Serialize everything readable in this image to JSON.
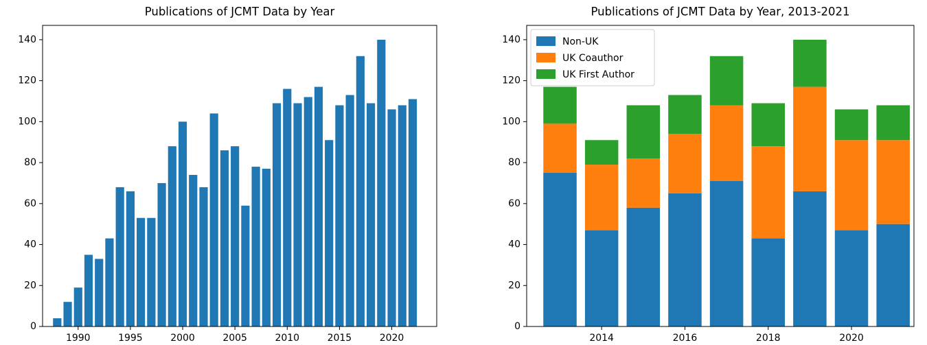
{
  "chart_data": [
    {
      "type": "bar",
      "title": "Publications of JCMT Data by Year",
      "color": "#1f77b4",
      "x": [
        1988,
        1989,
        1990,
        1991,
        1992,
        1993,
        1994,
        1995,
        1996,
        1997,
        1998,
        1999,
        2000,
        2001,
        2002,
        2003,
        2004,
        2005,
        2006,
        2007,
        2008,
        2009,
        2010,
        2011,
        2012,
        2013,
        2014,
        2015,
        2016,
        2017,
        2018,
        2019,
        2020,
        2021,
        2022
      ],
      "values": [
        4,
        12,
        19,
        35,
        33,
        43,
        68,
        66,
        53,
        53,
        70,
        88,
        100,
        74,
        68,
        104,
        86,
        88,
        59,
        78,
        77,
        109,
        116,
        109,
        112,
        117,
        91,
        108,
        113,
        132,
        109,
        140,
        106,
        108,
        111
      ],
      "xlim": [
        1986.6,
        2024.3
      ],
      "xticks": [
        1990,
        1995,
        2000,
        2005,
        2010,
        2015,
        2020
      ],
      "ylim": [
        0,
        147
      ],
      "yticks": [
        0,
        20,
        40,
        60,
        80,
        100,
        120,
        140
      ],
      "grid": false
    },
    {
      "type": "stacked_bar",
      "title": "Publications of JCMT Data by Year, 2013-2021",
      "x": [
        2013,
        2014,
        2015,
        2016,
        2017,
        2018,
        2019,
        2020,
        2021
      ],
      "series": [
        {
          "name": "Non-UK",
          "color": "#1f77b4",
          "values": [
            75,
            47,
            58,
            65,
            71,
            43,
            66,
            47,
            50
          ]
        },
        {
          "name": "UK Coauthor",
          "color": "#ff7f0e",
          "values": [
            24,
            32,
            24,
            29,
            37,
            45,
            51,
            44,
            41
          ]
        },
        {
          "name": "UK First Author",
          "color": "#2ca02c",
          "values": [
            18,
            12,
            26,
            19,
            24,
            21,
            23,
            15,
            17
          ]
        }
      ],
      "xlim": [
        2012.2,
        2021.5
      ],
      "xticks": [
        2014,
        2016,
        2018,
        2020
      ],
      "ylim": [
        0,
        147
      ],
      "yticks": [
        0,
        20,
        40,
        60,
        80,
        100,
        120,
        140
      ],
      "grid": false,
      "legend": "upper left"
    }
  ]
}
